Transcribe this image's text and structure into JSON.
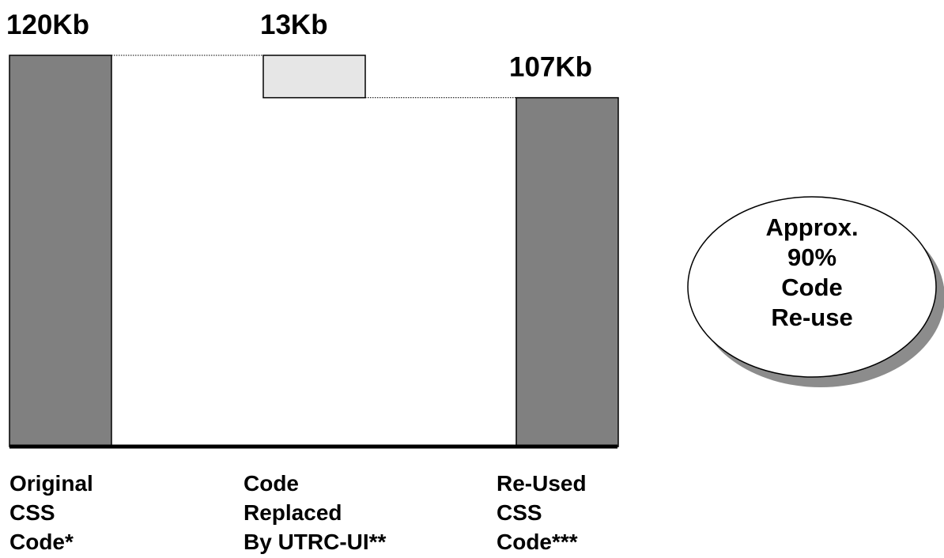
{
  "chart_data": {
    "type": "bar",
    "subtype": "waterfall",
    "unit": "Kb",
    "categories": [
      [
        "Original",
        "CSS",
        "Code*"
      ],
      [
        "Code",
        "Replaced",
        "By UTRC-UI**"
      ],
      [
        "Re-Used",
        "CSS",
        "Code***"
      ]
    ],
    "values": [
      120,
      13,
      107
    ],
    "value_labels": [
      "120Kb",
      "13Kb",
      "107Kb"
    ],
    "ylim": [
      0,
      120
    ],
    "grid": false,
    "annotation": {
      "lines": [
        "Approx.",
        "90%",
        "Code",
        "Re-use"
      ]
    }
  },
  "colors": {
    "bar": "#808080",
    "floating_bar": "#e6e6e6",
    "outline": "#000000",
    "shadow": "#8c8c8c",
    "background": "#ffffff"
  }
}
